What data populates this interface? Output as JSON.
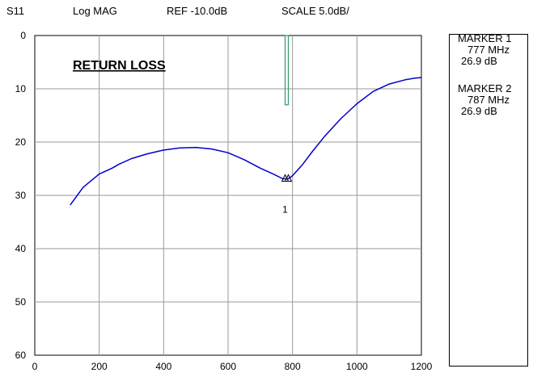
{
  "header": {
    "param": "S11",
    "format": "Log MAG",
    "ref": "REF -10.0dB",
    "scale": "SCALE 5.0dB/"
  },
  "markers": [
    {
      "title": "MARKER 1",
      "freq": "777 MHz",
      "value": "26.9 dB"
    },
    {
      "title": "MARKER 2",
      "freq": "787 MHz",
      "value": "26.9 dB"
    }
  ],
  "colors": {
    "trace": "#0000cc",
    "limit": "#339966",
    "grid": "#999999"
  },
  "chart_data": {
    "type": "line",
    "title": "RETURN LOSS",
    "xlim": [
      0,
      1200
    ],
    "ylim": [
      0,
      60
    ],
    "y_inverted": true,
    "grid": true,
    "x_ticks": [
      0,
      200,
      400,
      600,
      800,
      1000,
      1200
    ],
    "y_ticks": [
      0,
      10,
      20,
      30,
      40,
      50,
      60
    ],
    "series": [
      {
        "x": [
          110,
          150,
          200,
          240,
          260,
          300,
          350,
          400,
          450,
          500,
          550,
          600,
          650,
          700,
          740,
          770,
          777,
          787,
          800,
          830,
          860,
          900,
          950,
          1000,
          1050,
          1100,
          1150,
          1180,
          1200
        ],
        "y": [
          31.8,
          28.5,
          26.0,
          24.9,
          24.2,
          23.1,
          22.2,
          21.5,
          21.1,
          21.0,
          21.3,
          22.0,
          23.3,
          24.9,
          26.0,
          26.9,
          26.9,
          26.9,
          26.3,
          24.3,
          21.9,
          18.9,
          15.6,
          12.8,
          10.5,
          9.1,
          8.3,
          8.0,
          7.9
        ]
      }
    ],
    "limit_line": {
      "x": [
        777,
        787
      ],
      "y": [
        0,
        13
      ]
    },
    "marker_points": [
      {
        "x": 777,
        "y": 26.9,
        "label": "1"
      },
      {
        "x": 787,
        "y": 26.9,
        "label": ""
      }
    ]
  }
}
